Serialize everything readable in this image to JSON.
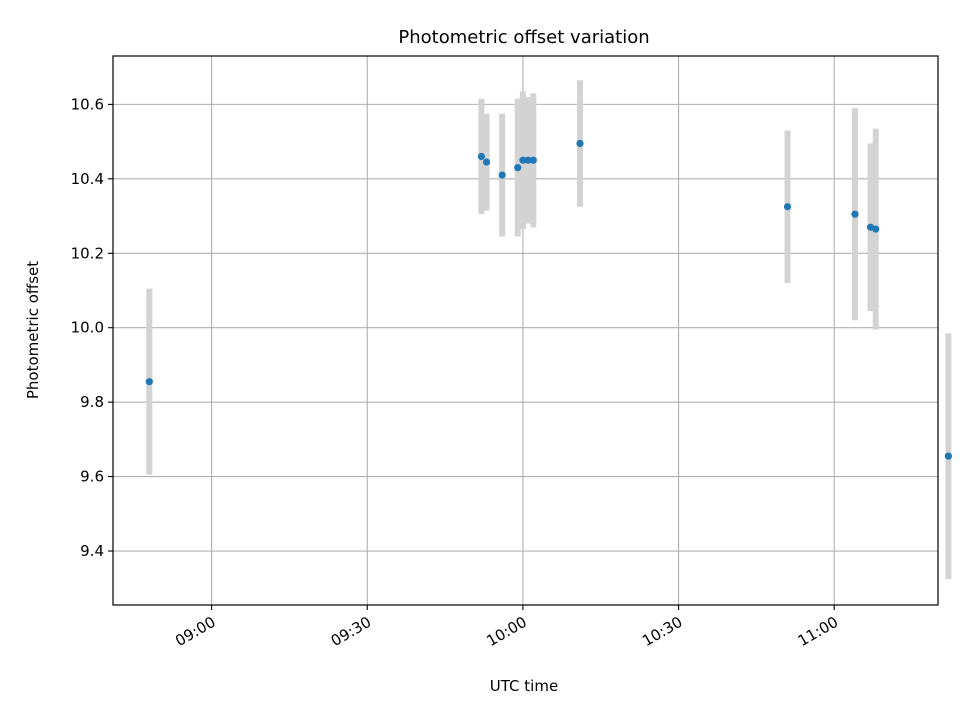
{
  "chart_data": {
    "type": "scatter",
    "title": "Photometric offset variation",
    "xlabel": "UTC time",
    "ylabel": "Photometric offset",
    "xlim": [
      "08:41",
      "11:20"
    ],
    "ylim": [
      9.255,
      10.73
    ],
    "xticks": [
      "09:00",
      "09:30",
      "10:00",
      "10:30",
      "11:00"
    ],
    "yticks": [
      9.4,
      9.6,
      9.8,
      10.0,
      10.2,
      10.4,
      10.6
    ],
    "ytick_labels": [
      "9.4",
      "9.6",
      "9.8",
      "10.0",
      "10.2",
      "10.4",
      "10.6"
    ],
    "grid": true,
    "colors": {
      "points": "#1f77b4",
      "errorbars": "#d3d3d3",
      "grid": "#b0b0b0"
    },
    "series": [
      {
        "points": [
          {
            "x": "08:48",
            "y": 9.855,
            "err": 0.25
          },
          {
            "x": "09:52",
            "y": 10.46,
            "err": 0.155
          },
          {
            "x": "09:53",
            "y": 10.445,
            "err": 0.13
          },
          {
            "x": "09:56",
            "y": 10.41,
            "err": 0.165
          },
          {
            "x": "09:59",
            "y": 10.43,
            "err": 0.185
          },
          {
            "x": "10:00",
            "y": 10.45,
            "err": 0.185
          },
          {
            "x": "10:01",
            "y": 10.45,
            "err": 0.17
          },
          {
            "x": "10:02",
            "y": 10.45,
            "err": 0.18
          },
          {
            "x": "10:11",
            "y": 10.495,
            "err": 0.17
          },
          {
            "x": "10:51",
            "y": 10.325,
            "err": 0.205
          },
          {
            "x": "11:04",
            "y": 10.305,
            "err": 0.285
          },
          {
            "x": "11:07",
            "y": 10.27,
            "err": 0.225
          },
          {
            "x": "11:08",
            "y": 10.265,
            "err": 0.27
          },
          {
            "x": "11:22",
            "y": 9.655,
            "err": 0.33
          }
        ]
      }
    ]
  }
}
